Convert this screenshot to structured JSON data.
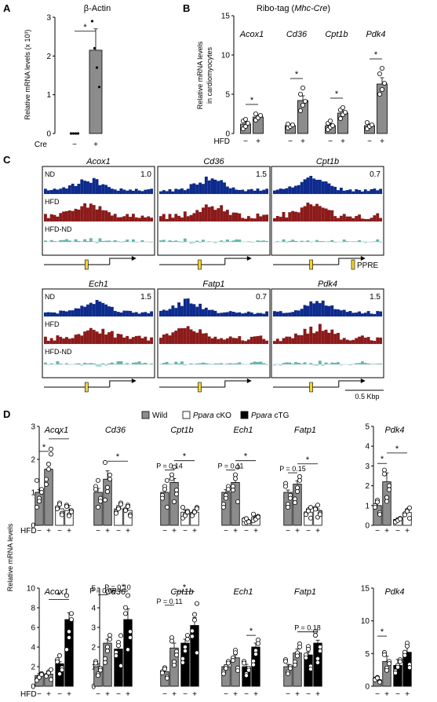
{
  "panels": {
    "A": "A",
    "B": "B",
    "C": "C",
    "D": "D"
  },
  "panelA": {
    "title": "β-Actin",
    "ylabel": "Relative mRNA levels (x 10³)",
    "xlabel": "Cre",
    "groups": [
      "−",
      "+"
    ],
    "sig": "*"
  },
  "panelB": {
    "title_prefix": "Ribo-tag (",
    "title_gene": "Mhc-Cre",
    "title_suffix": ")",
    "ylabel_line1": "Relative mRNA levels",
    "ylabel_line2": "in cardiomyocytes",
    "xlabel": "HFD",
    "minus": "−",
    "plus": "+",
    "sig": "*"
  },
  "panelC": {
    "genes": [
      {
        "name": "Acox1",
        "scale": "1.0",
        "row": 0,
        "col": 0,
        "peak": 0.4
      },
      {
        "name": "Cd36",
        "scale": "1.5",
        "row": 0,
        "col": 1,
        "peak": 0.45
      },
      {
        "name": "Cpt1b",
        "scale": "0.7",
        "row": 0,
        "col": 2,
        "peak": 0.35
      },
      {
        "name": "Ech1",
        "scale": "1.5",
        "row": 1,
        "col": 0,
        "peak": 0.45
      },
      {
        "name": "Fatp1",
        "scale": "0.7",
        "row": 1,
        "col": 1,
        "peak": 0.25
      },
      {
        "name": "Pdk4",
        "scale": "1.5",
        "row": 1,
        "col": 2,
        "peak": 0.4
      }
    ],
    "track_labels": [
      "ND",
      "HFD",
      "HFD-ND"
    ],
    "ppre_label": "PPRE",
    "scalebar_label": "0.5 Kbp",
    "colors": {
      "nd": "#0d2a8c",
      "hfd": "#8b1a1a",
      "diff": "#5fb8ad",
      "diff_neg": "#a9dcd6",
      "ppre": "#f2d43a"
    }
  },
  "panelD": {
    "legend": [
      {
        "label": "Wild",
        "italic_prefix": "",
        "fill": "#8c8c8c"
      },
      {
        "label": " cKO",
        "italic_prefix": "Ppara",
        "fill": "#ffffff"
      },
      {
        "label": " cTG",
        "italic_prefix": "Ppara",
        "fill": "#000000"
      }
    ],
    "ylabel": "Relative mRNA levels",
    "xlabel": "HFD",
    "minus": "−",
    "plus": "+",
    "sig": "*"
  },
  "chart_data": [
    {
      "type": "bar",
      "id": "A",
      "title": "β-Actin",
      "ylabel": "Relative mRNA levels (x 10³)",
      "categories": [
        "−",
        "+"
      ],
      "values": [
        0.0,
        2.15
      ],
      "errors": [
        0.0,
        0.55
      ],
      "points": [
        [
          0,
          0,
          0,
          0
        ],
        [
          2.9,
          2.2,
          1.7,
          1.2
        ]
      ],
      "ylim": [
        0,
        3
      ],
      "yticks": [
        0,
        1,
        2,
        3
      ],
      "significance": [
        {
          "from": 0,
          "to": 1,
          "label": "*"
        }
      ]
    },
    {
      "type": "bar",
      "id": "B",
      "ylim": [
        0,
        15
      ],
      "yticks": [
        0,
        5,
        10,
        15
      ],
      "genes": [
        {
          "name": "Acox1",
          "values": [
            1.2,
            2.1
          ],
          "errors": [
            0.3,
            0.2
          ],
          "points": [
            [
              0.6,
              0.9,
              1.3,
              1.6,
              1.8
            ],
            [
              1.7,
              2.0,
              2.3,
              2.5
            ]
          ],
          "sig": "*"
        },
        {
          "name": "Cd36",
          "values": [
            1.0,
            4.2
          ],
          "errors": [
            0.2,
            0.6
          ],
          "points": [
            [
              0.7,
              0.9,
              1.1,
              1.2
            ],
            [
              2.9,
              3.6,
              4.1,
              5.0,
              5.8
            ]
          ],
          "sig": "*"
        },
        {
          "name": "Cpt1b",
          "values": [
            1.0,
            2.6
          ],
          "errors": [
            0.25,
            0.3
          ],
          "points": [
            [
              0.5,
              0.8,
              1.0,
              1.3,
              1.6
            ],
            [
              1.9,
              2.4,
              2.7,
              3.0,
              3.3
            ]
          ],
          "sig": "*"
        },
        {
          "name": "Pdk4",
          "values": [
            1.0,
            6.3
          ],
          "errors": [
            0.2,
            0.8
          ],
          "points": [
            [
              0.6,
              0.9,
              1.1,
              1.4
            ],
            [
              5.0,
              5.6,
              6.4,
              7.6,
              8.3
            ]
          ],
          "sig": "*"
        }
      ]
    },
    {
      "type": "bar",
      "id": "D-top",
      "series": [
        "Wild",
        "Ppara cKO"
      ],
      "genes": [
        {
          "name": "Acox1",
          "values": [
            1.0,
            1.7,
            0.5,
            0.45
          ],
          "errors": [
            0.08,
            0.2,
            0.1,
            0.15
          ],
          "ylim": [
            0,
            3
          ],
          "yticks": [
            0,
            1,
            2,
            3
          ],
          "sig": [
            {
              "a": 0,
              "b": 1,
              "label": "*"
            },
            {
              "a": 1,
              "b": 3,
              "label": "*"
            }
          ]
        },
        {
          "name": "Cd36",
          "values": [
            1.0,
            1.4,
            0.5,
            0.45
          ],
          "errors": [
            0.12,
            0.25,
            0.1,
            0.15
          ],
          "sig": [
            {
              "a": 1,
              "b": 3,
              "label": "*"
            }
          ]
        },
        {
          "name": "Cpt1b",
          "values": [
            1.0,
            1.3,
            0.4,
            0.4
          ],
          "errors": [
            0.1,
            0.12,
            0.07,
            0.06
          ],
          "sig": [
            {
              "a": 0,
              "b": 1,
              "label": "P = 0.14"
            },
            {
              "a": 1,
              "b": 3,
              "label": "*"
            }
          ]
        },
        {
          "name": "Ech1",
          "values": [
            1.0,
            1.3,
            0.15,
            0.25
          ],
          "errors": [
            0.08,
            0.12,
            0.03,
            0.04
          ],
          "sig": [
            {
              "a": 0,
              "b": 1,
              "label": "P = 0.11"
            },
            {
              "a": 1,
              "b": 3,
              "label": "*"
            }
          ]
        },
        {
          "name": "Fatp1",
          "values": [
            1.0,
            1.25,
            0.4,
            0.45
          ],
          "errors": [
            0.07,
            0.1,
            0.06,
            0.05
          ],
          "sig": [
            {
              "a": 0,
              "b": 1,
              "label": "P = 0.15"
            },
            {
              "a": 1,
              "b": 3,
              "label": "*"
            }
          ]
        },
        {
          "name": "Pdk4",
          "values": [
            1.0,
            2.2,
            0.3,
            0.65
          ],
          "errors": [
            0.3,
            0.45,
            0.07,
            0.15
          ],
          "ylim": [
            0,
            5
          ],
          "yticks": [
            0,
            1,
            2,
            3,
            4,
            5
          ],
          "sig": [
            {
              "a": 0,
              "b": 1,
              "label": "*"
            },
            {
              "a": 1,
              "b": 3,
              "label": "*"
            }
          ]
        }
      ]
    },
    {
      "type": "bar",
      "id": "D-bottom",
      "series": [
        "Wild",
        "Ppara cTG"
      ],
      "genes": [
        {
          "name": "Acox1",
          "values": [
            1.1,
            1.25,
            2.3,
            6.8
          ],
          "errors": [
            0.2,
            0.15,
            0.2,
            0.7
          ],
          "ylim": [
            0,
            10
          ],
          "yticks": [
            0,
            2,
            4,
            6,
            8,
            10
          ],
          "sig": [
            {
              "a": 1,
              "b": 3,
              "label": "*"
            }
          ]
        },
        {
          "name": "Cd36",
          "values": [
            1.0,
            2.2,
            1.9,
            3.4
          ],
          "errors": [
            0.15,
            0.2,
            0.3,
            0.55
          ],
          "ylim": [
            0,
            5
          ],
          "yticks": [
            0,
            1,
            2,
            3,
            4,
            5
          ],
          "sig": [
            {
              "a": 0,
              "b": 1,
              "label": "P = 0.06"
            },
            {
              "a": 1,
              "b": 3,
              "label": "P = 0.10"
            },
            {
              "a": 2,
              "b": 3,
              "label": "*"
            }
          ]
        },
        {
          "name": "Cpt1b",
          "values": [
            0.75,
            1.95,
            2.2,
            3.1
          ],
          "errors": [
            0.1,
            0.25,
            0.2,
            0.4
          ],
          "sig": [
            {
              "a": 0,
              "b": 1,
              "label": "P = 0.11"
            },
            {
              "a": 1,
              "b": 3,
              "label": "*"
            }
          ]
        },
        {
          "name": "Ech1",
          "values": [
            1.0,
            1.45,
            1.0,
            2.0
          ],
          "errors": [
            0.1,
            0.15,
            0.12,
            0.2
          ],
          "sig": [
            {
              "a": 2,
              "b": 3,
              "label": "*"
            }
          ]
        },
        {
          "name": "Fatp1",
          "values": [
            1.0,
            1.7,
            1.6,
            2.2
          ],
          "errors": [
            0.12,
            0.2,
            0.15,
            0.15
          ],
          "sig": [
            {
              "a": 1,
              "b": 3,
              "label": "P = 0.18"
            }
          ]
        },
        {
          "name": "Pdk4",
          "values": [
            1.0,
            3.8,
            3.2,
            5.2
          ],
          "errors": [
            0.25,
            0.8,
            0.9,
            1.3
          ],
          "ylim": [
            0,
            15
          ],
          "yticks": [
            0,
            5,
            10,
            15
          ],
          "sig": [
            {
              "a": 0,
              "b": 1,
              "label": "*"
            }
          ]
        }
      ]
    }
  ]
}
